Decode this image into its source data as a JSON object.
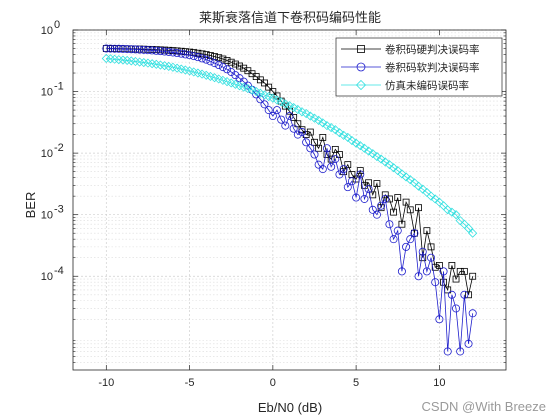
{
  "chart_data": {
    "type": "line",
    "title": "莱斯衰落信道下卷积码编码性能",
    "xlabel": "Eb/N0 (dB)",
    "ylabel": "BER",
    "xlim": [
      -12,
      14
    ],
    "ylim": [
      3e-06,
      1
    ],
    "yscale": "log",
    "xticks": [
      "-10",
      "-5",
      "0",
      "5",
      "10"
    ],
    "yticks": [
      "10^-4",
      "10^-3",
      "10^-2",
      "10^-1",
      "10^0"
    ],
    "grid": true,
    "legend_position": "top-right",
    "series": [
      {
        "name": "卷积码硬判决误码率",
        "color": "#000000",
        "marker": "square",
        "x": [
          -10,
          -9.75,
          -9.5,
          -9.25,
          -9,
          -8.75,
          -8.5,
          -8.25,
          -8,
          -7.75,
          -7.5,
          -7.25,
          -7,
          -6.75,
          -6.5,
          -6.25,
          -6,
          -5.75,
          -5.5,
          -5.25,
          -5,
          -4.75,
          -4.5,
          -4.25,
          -4,
          -3.75,
          -3.5,
          -3.25,
          -3,
          -2.75,
          -2.5,
          -2.25,
          -2,
          -1.75,
          -1.5,
          -1.25,
          -1,
          -0.75,
          -0.5,
          -0.25,
          0,
          0.25,
          0.5,
          0.75,
          1,
          1.25,
          1.5,
          1.75,
          2,
          2.25,
          2.5,
          2.75,
          3,
          3.25,
          3.5,
          3.75,
          4,
          4.25,
          4.5,
          4.75,
          5,
          5.25,
          5.5,
          5.75,
          6,
          6.25,
          6.5,
          6.75,
          7,
          7.25,
          7.5,
          7.75,
          8,
          8.25,
          8.5,
          8.75,
          9,
          9.25,
          9.5,
          9.75,
          10,
          10.25,
          10.5,
          10.75,
          11,
          11.25,
          11.5,
          11.75,
          12
        ],
        "values": [
          0.5,
          0.499,
          0.498,
          0.497,
          0.496,
          0.495,
          0.494,
          0.492,
          0.49,
          0.488,
          0.485,
          0.482,
          0.479,
          0.476,
          0.472,
          0.468,
          0.463,
          0.458,
          0.452,
          0.445,
          0.438,
          0.43,
          0.42,
          0.41,
          0.398,
          0.385,
          0.37,
          0.355,
          0.338,
          0.32,
          0.3,
          0.28,
          0.26,
          0.24,
          0.218,
          0.195,
          0.175,
          0.155,
          0.138,
          0.118,
          0.1,
          0.085,
          0.07,
          0.058,
          0.048,
          0.038,
          0.03,
          0.024,
          0.02,
          0.022,
          0.015,
          0.012,
          0.018,
          0.0095,
          0.008,
          0.0115,
          0.0095,
          0.005,
          0.0065,
          0.0045,
          0.0038,
          0.0052,
          0.003,
          0.0033,
          0.0021,
          0.0032,
          0.0013,
          0.0021,
          0.0018,
          0.0011,
          0.0019,
          0.0007,
          0.0016,
          0.0012,
          0.0005,
          0.0013,
          0.0002,
          0.00055,
          0.0003,
          0.00014,
          0.00015,
          8e-05,
          6e-05,
          0.00015,
          9e-05,
          0.00012,
          0.00012,
          5e-05,
          0.0001
        ]
      },
      {
        "name": "卷积码软判决误码率",
        "color": "#1f1fcc",
        "marker": "circle",
        "x": [
          -10,
          -9.75,
          -9.5,
          -9.25,
          -9,
          -8.75,
          -8.5,
          -8.25,
          -8,
          -7.75,
          -7.5,
          -7.25,
          -7,
          -6.75,
          -6.5,
          -6.25,
          -6,
          -5.75,
          -5.5,
          -5.25,
          -5,
          -4.75,
          -4.5,
          -4.25,
          -4,
          -3.75,
          -3.5,
          -3.25,
          -3,
          -2.75,
          -2.5,
          -2.25,
          -2,
          -1.75,
          -1.5,
          -1.25,
          -1,
          -0.75,
          -0.5,
          -0.25,
          0,
          0.25,
          0.5,
          0.75,
          1,
          1.25,
          1.5,
          1.75,
          2,
          2.25,
          2.5,
          2.75,
          3,
          3.25,
          3.5,
          3.75,
          4,
          4.25,
          4.5,
          4.75,
          5,
          5.25,
          5.5,
          5.75,
          6,
          6.25,
          6.5,
          6.75,
          7,
          7.25,
          7.5,
          7.75,
          8,
          8.25,
          8.5,
          8.75,
          9,
          9.25,
          9.5,
          9.75,
          10,
          10.25,
          10.5,
          10.75,
          11,
          11.25,
          11.5,
          11.75,
          12
        ],
        "values": [
          0.5,
          0.499,
          0.497,
          0.495,
          0.493,
          0.49,
          0.487,
          0.484,
          0.48,
          0.476,
          0.471,
          0.466,
          0.46,
          0.454,
          0.447,
          0.44,
          0.432,
          0.423,
          0.413,
          0.402,
          0.39,
          0.377,
          0.362,
          0.346,
          0.33,
          0.31,
          0.29,
          0.27,
          0.25,
          0.23,
          0.208,
          0.185,
          0.165,
          0.145,
          0.125,
          0.107,
          0.09,
          0.075,
          0.062,
          0.05,
          0.04,
          0.05,
          0.035,
          0.028,
          0.04,
          0.025,
          0.02,
          0.022,
          0.015,
          0.012,
          0.0095,
          0.0065,
          0.0055,
          0.012,
          0.006,
          0.008,
          0.0045,
          0.0055,
          0.0028,
          0.0035,
          0.0019,
          0.0045,
          0.0018,
          0.0026,
          0.0012,
          0.001,
          0.0014,
          0.0018,
          0.0007,
          0.0004,
          0.00055,
          0.00012,
          0.0003,
          0.0004,
          0.0005,
          0.0001,
          0.00025,
          0.00012,
          0.0002,
          8e-05,
          2e-05,
          0.00012,
          6e-06,
          5e-05,
          3e-05,
          6e-06,
          5e-05,
          8e-06,
          2.5e-05
        ]
      },
      {
        "name": "仿真未编码误码率",
        "color": "#33e0e0",
        "marker": "diamond",
        "x": [
          -10,
          -9.75,
          -9.5,
          -9.25,
          -9,
          -8.75,
          -8.5,
          -8.25,
          -8,
          -7.75,
          -7.5,
          -7.25,
          -7,
          -6.75,
          -6.5,
          -6.25,
          -6,
          -5.75,
          -5.5,
          -5.25,
          -5,
          -4.75,
          -4.5,
          -4.25,
          -4,
          -3.75,
          -3.5,
          -3.25,
          -3,
          -2.75,
          -2.5,
          -2.25,
          -2,
          -1.75,
          -1.5,
          -1.25,
          -1,
          -0.75,
          -0.5,
          -0.25,
          0,
          0.25,
          0.5,
          0.75,
          1,
          1.25,
          1.5,
          1.75,
          2,
          2.25,
          2.5,
          2.75,
          3,
          3.25,
          3.5,
          3.75,
          4,
          4.25,
          4.5,
          4.75,
          5,
          5.25,
          5.5,
          5.75,
          6,
          6.25,
          6.5,
          6.75,
          7,
          7.25,
          7.5,
          7.75,
          8,
          8.25,
          8.5,
          8.75,
          9,
          9.25,
          9.5,
          9.75,
          10,
          10.25,
          10.5,
          10.75,
          11,
          11.25,
          11.5,
          11.75,
          12
        ],
        "values": [
          0.345,
          0.34,
          0.335,
          0.33,
          0.325,
          0.32,
          0.314,
          0.308,
          0.302,
          0.296,
          0.29,
          0.284,
          0.277,
          0.27,
          0.263,
          0.256,
          0.248,
          0.24,
          0.232,
          0.224,
          0.216,
          0.208,
          0.2,
          0.192,
          0.184,
          0.176,
          0.168,
          0.16,
          0.152,
          0.145,
          0.138,
          0.131,
          0.124,
          0.118,
          0.112,
          0.106,
          0.1,
          0.094,
          0.088,
          0.083,
          0.078,
          0.073,
          0.068,
          0.063,
          0.059,
          0.055,
          0.051,
          0.047,
          0.044,
          0.04,
          0.037,
          0.034,
          0.031,
          0.028,
          0.026,
          0.024,
          0.0215,
          0.0195,
          0.018,
          0.016,
          0.0145,
          0.0132,
          0.012,
          0.0108,
          0.0098,
          0.0088,
          0.008,
          0.0072,
          0.0065,
          0.0058,
          0.0052,
          0.0046,
          0.0041,
          0.0037,
          0.0033,
          0.0029,
          0.0026,
          0.0023,
          0.002,
          0.0018,
          0.0016,
          0.0014,
          0.0012,
          0.0011,
          0.001,
          0.0008,
          0.0007,
          0.0006,
          0.0005
        ]
      }
    ]
  },
  "watermark": "CSDN @With Breeze"
}
